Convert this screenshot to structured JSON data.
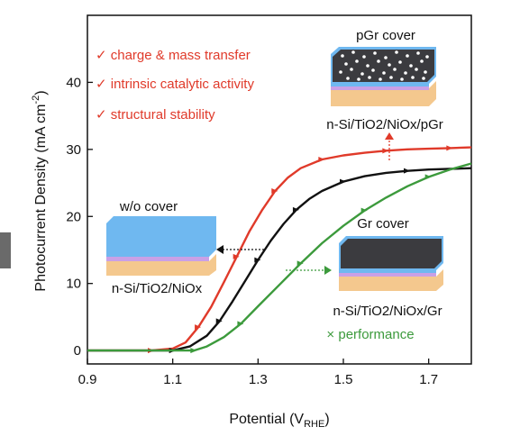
{
  "chart_data": {
    "type": "line",
    "xlabel_main": "Potential (V",
    "xlabel_sub": "RHE",
    "xlabel_end": ")",
    "ylabel_main": "Photocurrent Density (mA cm",
    "ylabel_sup": "-2",
    "ylabel_end": ")",
    "xlim": [
      0.9,
      1.8
    ],
    "ylim": [
      -2,
      50
    ],
    "xticks": [
      "0.9",
      "1.1",
      "1.3",
      "1.5",
      "1.7"
    ],
    "xtick_values": [
      0.9,
      1.1,
      1.3,
      1.5,
      1.7
    ],
    "yticks": [
      "0",
      "10",
      "20",
      "30",
      "40"
    ],
    "ytick_values": [
      0,
      10,
      20,
      30,
      40
    ],
    "series": [
      {
        "color": "#e03a2a",
        "x": [
          0.9,
          1.05,
          1.1,
          1.13,
          1.16,
          1.19,
          1.22,
          1.25,
          1.28,
          1.31,
          1.34,
          1.37,
          1.4,
          1.45,
          1.5,
          1.55,
          1.6,
          1.65,
          1.7,
          1.75,
          1.8
        ],
        "y": [
          0,
          0,
          0.3,
          1.2,
          3.5,
          6.5,
          10.2,
          14.0,
          17.8,
          21.0,
          23.8,
          25.8,
          27.2,
          28.5,
          29.1,
          29.5,
          29.8,
          30.0,
          30.1,
          30.2,
          30.3
        ]
      },
      {
        "color": "#111111",
        "x": [
          0.9,
          1.1,
          1.14,
          1.18,
          1.21,
          1.24,
          1.27,
          1.3,
          1.33,
          1.36,
          1.39,
          1.42,
          1.45,
          1.5,
          1.55,
          1.6,
          1.65,
          1.7,
          1.75,
          1.8
        ],
        "y": [
          0,
          0,
          0.6,
          2.2,
          4.4,
          7.3,
          10.4,
          13.5,
          16.4,
          18.9,
          21.0,
          22.6,
          23.8,
          25.2,
          26.0,
          26.5,
          26.8,
          27.0,
          27.1,
          27.2
        ]
      },
      {
        "color": "#3c9a3c",
        "x": [
          0.9,
          1.15,
          1.18,
          1.22,
          1.26,
          1.3,
          1.35,
          1.4,
          1.45,
          1.5,
          1.55,
          1.6,
          1.65,
          1.7,
          1.75,
          1.8
        ],
        "y": [
          0,
          0,
          0.6,
          2.0,
          4.0,
          6.6,
          9.8,
          13.0,
          16.0,
          18.6,
          20.9,
          22.8,
          24.5,
          25.9,
          27.0,
          27.9
        ]
      }
    ]
  },
  "notes": {
    "line1": "✓ charge & mass transfer",
    "line2": "✓ intrinsic catalytic activity",
    "line3": "✓ structural stability"
  },
  "insets": {
    "pgr_title": "pGr cover",
    "pgr_label": "n-Si/TiO2/NiOx/pGr",
    "wo_title": "w/o cover",
    "wo_label": "n-Si/TiO2/NiOx",
    "gr_title": "Gr cover",
    "gr_label": "n-Si/TiO2/NiOx/Gr",
    "performance": "× performance"
  },
  "colors": {
    "red": "#e03a2a",
    "black": "#111111",
    "green": "#3c9a3c",
    "substrate": "#f4c88e",
    "tio2": "#c9a0e6",
    "nio": "#6fb8f0",
    "graphene": "#3b3b3f"
  }
}
